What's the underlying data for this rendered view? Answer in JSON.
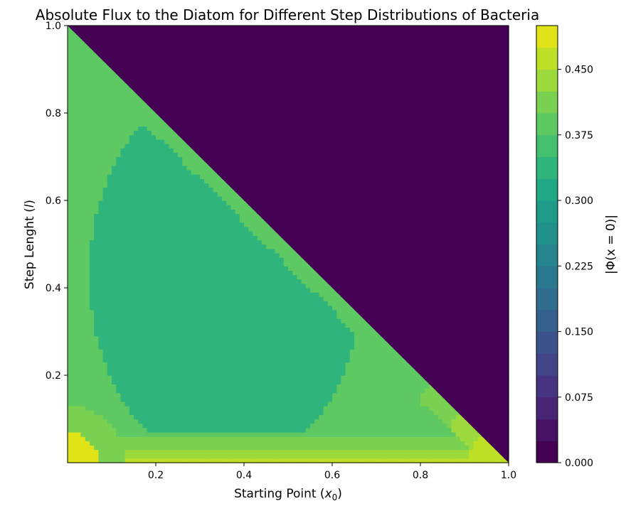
{
  "chart_data": {
    "type": "heatmap",
    "title": "Absolute Flux to the Diatom for Different Step Distributions of Bacteria",
    "xlabel": {
      "main": "Starting Point (",
      "var": "x",
      "sub": "0",
      "close": ")"
    },
    "ylabel": {
      "main": "Step Lenght (",
      "var": "l",
      "close": ")"
    },
    "colorbar_label": "|Φ(x = 0)|",
    "xlim": [
      0,
      1.0
    ],
    "ylim": [
      0,
      1.0
    ],
    "x_ticks": [
      {
        "value": 0.2,
        "label": "0.2"
      },
      {
        "value": 0.4,
        "label": "0.4"
      },
      {
        "value": 0.6,
        "label": "0.6"
      },
      {
        "value": 0.8,
        "label": "0.8"
      },
      {
        "value": 1.0,
        "label": "1.0"
      }
    ],
    "y_ticks": [
      {
        "value": 0.2,
        "label": "0.2"
      },
      {
        "value": 0.4,
        "label": "0.4"
      },
      {
        "value": 0.6,
        "label": "0.6"
      },
      {
        "value": 0.8,
        "label": "0.8"
      },
      {
        "value": 1.0,
        "label": "1.0"
      }
    ],
    "colorbar": {
      "range": [
        0,
        0.5
      ],
      "levels": 20,
      "ticks": [
        {
          "value": 0.0,
          "label": "0.000"
        },
        {
          "value": 0.075,
          "label": "0.075"
        },
        {
          "value": 0.15,
          "label": "0.150"
        },
        {
          "value": 0.225,
          "label": "0.225"
        },
        {
          "value": 0.3,
          "label": "0.300"
        },
        {
          "value": 0.375,
          "label": "0.375"
        },
        {
          "value": 0.45,
          "label": "0.450"
        }
      ],
      "colors": [
        "#440154",
        "#471365",
        "#482475",
        "#463480",
        "#414487",
        "#3b528b",
        "#355f8d",
        "#2f6c8e",
        "#2a788e",
        "#25848e",
        "#21918c",
        "#1e9c89",
        "#22a884",
        "#2fb47c",
        "#44bf70",
        "#5ec962",
        "#7ad151",
        "#9bd93c",
        "#bddf26",
        "#dfe318"
      ]
    },
    "regions": [
      {
        "name": "out-of-domain (x0 + l > 1)",
        "value": 0.0
      },
      {
        "name": "boundary band",
        "value": 0.375
      },
      {
        "name": "central ellipse",
        "value": 0.34
      },
      {
        "name": "low step-length band",
        "value": 0.42
      },
      {
        "name": "corner near x0=0, l=0",
        "value": 0.49
      },
      {
        "name": "corner near x0=1, l=0",
        "value": 0.47
      }
    ]
  }
}
